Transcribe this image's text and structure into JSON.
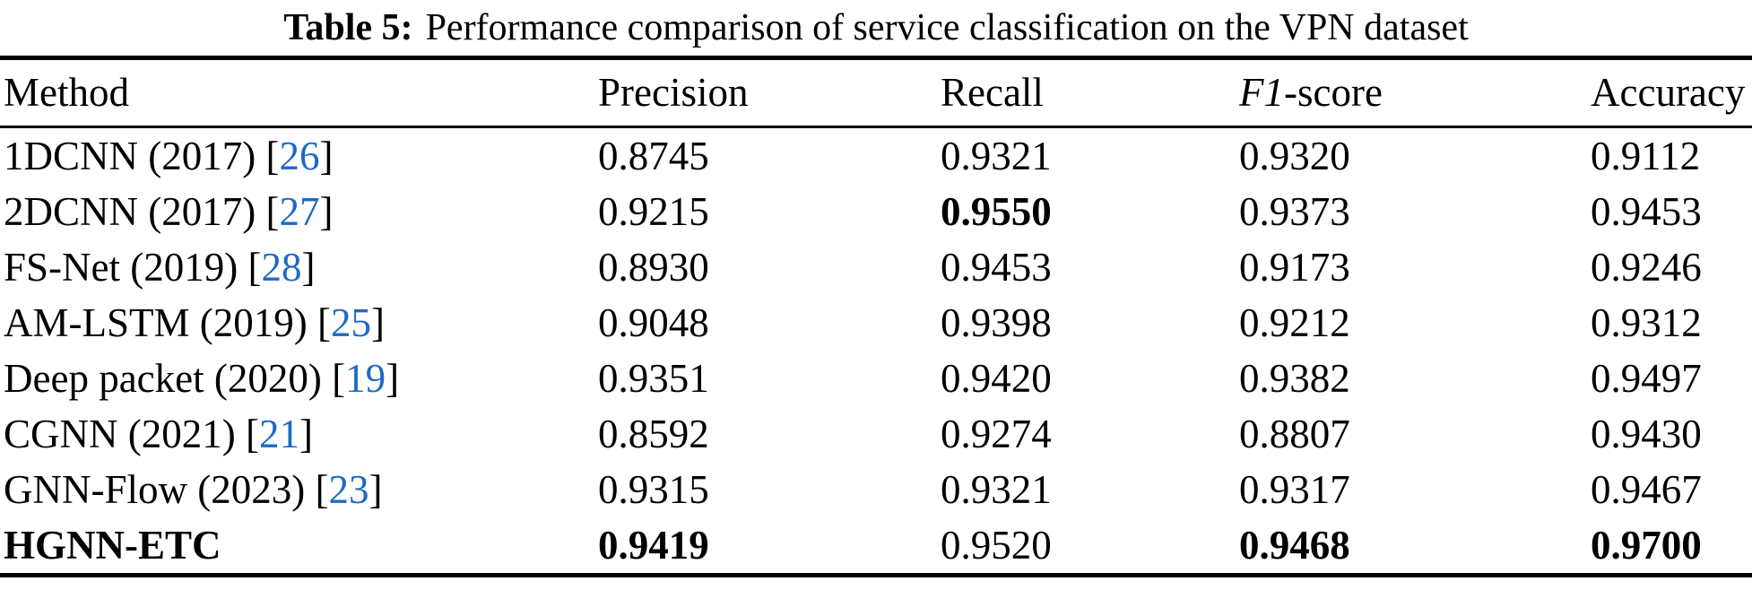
{
  "title": {
    "label": "Table 5:",
    "text": "Performance comparison of service classification on the VPN dataset"
  },
  "table": {
    "columns": [
      {
        "text": "Method"
      },
      {
        "text": "Precision"
      },
      {
        "text": "Recall"
      },
      {
        "italic": "F1",
        "text": "-score"
      },
      {
        "text": "Accuracy"
      }
    ],
    "rows": [
      {
        "method": "1DCNN (2017)",
        "ref": "26",
        "method_bold": false,
        "values": [
          "0.8745",
          "0.9321",
          "0.9320",
          "0.9112"
        ],
        "bold": [
          false,
          false,
          false,
          false
        ]
      },
      {
        "method": "2DCNN (2017)",
        "ref": "27",
        "method_bold": false,
        "values": [
          "0.9215",
          "0.9550",
          "0.9373",
          "0.9453"
        ],
        "bold": [
          false,
          true,
          false,
          false
        ]
      },
      {
        "method": "FS-Net (2019)",
        "ref": "28",
        "method_bold": false,
        "values": [
          "0.8930",
          "0.9453",
          "0.9173",
          "0.9246"
        ],
        "bold": [
          false,
          false,
          false,
          false
        ]
      },
      {
        "method": "AM-LSTM (2019)",
        "ref": "25",
        "method_bold": false,
        "values": [
          "0.9048",
          "0.9398",
          "0.9212",
          "0.9312"
        ],
        "bold": [
          false,
          false,
          false,
          false
        ]
      },
      {
        "method": "Deep packet (2020)",
        "ref": "19",
        "method_bold": false,
        "values": [
          "0.9351",
          "0.9420",
          "0.9382",
          "0.9497"
        ],
        "bold": [
          false,
          false,
          false,
          false
        ]
      },
      {
        "method": "CGNN (2021)",
        "ref": "21",
        "method_bold": false,
        "values": [
          "0.8592",
          "0.9274",
          "0.8807",
          "0.9430"
        ],
        "bold": [
          false,
          false,
          false,
          false
        ]
      },
      {
        "method": "GNN-Flow (2023)",
        "ref": "23",
        "method_bold": false,
        "values": [
          "0.9315",
          "0.9321",
          "0.9317",
          "0.9467"
        ],
        "bold": [
          false,
          false,
          false,
          false
        ]
      },
      {
        "method": "HGNN-ETC",
        "ref": null,
        "method_bold": true,
        "values": [
          "0.9419",
          "0.9520",
          "0.9468",
          "0.9700"
        ],
        "bold": [
          true,
          false,
          true,
          true
        ]
      }
    ]
  },
  "chart_data": {
    "type": "table",
    "title": "Table 5: Performance comparison of service classification on the VPN dataset",
    "columns": [
      "Method",
      "Precision",
      "Recall",
      "F1-score",
      "Accuracy"
    ],
    "rows": [
      [
        "1DCNN (2017) [26]",
        0.8745,
        0.9321,
        0.932,
        0.9112
      ],
      [
        "2DCNN (2017) [27]",
        0.9215,
        0.955,
        0.9373,
        0.9453
      ],
      [
        "FS-Net (2019) [28]",
        0.893,
        0.9453,
        0.9173,
        0.9246
      ],
      [
        "AM-LSTM (2019) [25]",
        0.9048,
        0.9398,
        0.9212,
        0.9312
      ],
      [
        "Deep packet (2020) [19]",
        0.9351,
        0.942,
        0.9382,
        0.9497
      ],
      [
        "CGNN (2021) [21]",
        0.8592,
        0.9274,
        0.8807,
        0.943
      ],
      [
        "GNN-Flow (2023) [23]",
        0.9315,
        0.9321,
        0.9317,
        0.9467
      ],
      [
        "HGNN-ETC",
        0.9419,
        0.952,
        0.9468,
        0.97
      ]
    ]
  },
  "colors": {
    "text": "#000000",
    "rule": "#000000",
    "citation_link": "#1e69c3"
  }
}
